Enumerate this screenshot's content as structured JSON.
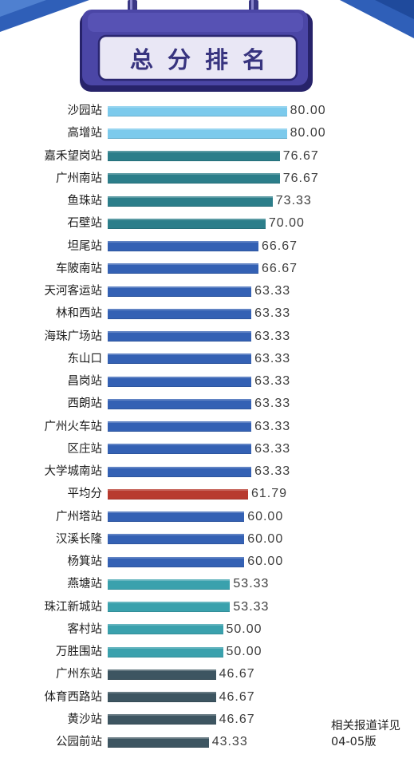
{
  "chart_data": {
    "type": "bar",
    "orientation": "horizontal",
    "title": "总分排名",
    "categories": [
      "沙园站",
      "高增站",
      "嘉禾望岗站",
      "广州南站",
      "鱼珠站",
      "石壁站",
      "坦尾站",
      "车陂南站",
      "天河客运站",
      "林和西站",
      "海珠广场站",
      "东山口",
      "昌岗站",
      "西朗站",
      "广州火车站",
      "区庄站",
      "大学城南站",
      "平均分",
      "广州塔站",
      "汉溪长隆",
      "杨箕站",
      "燕塘站",
      "珠江新城站",
      "客村站",
      "万胜围站",
      "广州东站",
      "体育西路站",
      "黄沙站",
      "公园前站"
    ],
    "values": [
      80.0,
      80.0,
      76.67,
      76.67,
      73.33,
      70.0,
      66.67,
      66.67,
      63.33,
      63.33,
      63.33,
      63.33,
      63.33,
      63.33,
      63.33,
      63.33,
      63.33,
      61.79,
      60.0,
      60.0,
      60.0,
      53.33,
      53.33,
      50.0,
      50.0,
      46.67,
      46.67,
      46.67,
      43.33
    ],
    "value_labels": [
      "80.00",
      "80.00",
      "76.67",
      "76.67",
      "73.33",
      "70.00",
      "66.67",
      "66.67",
      "63.33",
      "63.33",
      "63.33",
      "63.33",
      "63.33",
      "63.33",
      "63.33",
      "63.33",
      "63.33",
      "61.79",
      "60.00",
      "60.00",
      "60.00",
      "53.33",
      "53.33",
      "50.00",
      "50.00",
      "46.67",
      "46.67",
      "46.67",
      "43.33"
    ],
    "bar_colors": [
      "#7ccaec",
      "#7ccaec",
      "#2c7e8a",
      "#2c7e8a",
      "#2c7e8a",
      "#2c7e8a",
      "#3461b4",
      "#3461b4",
      "#3461b4",
      "#3461b4",
      "#3461b4",
      "#3461b4",
      "#3461b4",
      "#3461b4",
      "#3461b4",
      "#3461b4",
      "#3461b4",
      "#b83a2f",
      "#3461b4",
      "#3461b4",
      "#3461b4",
      "#3aa1ad",
      "#3aa1ad",
      "#3aa1ad",
      "#3aa1ad",
      "#3d5561",
      "#3d5561",
      "#3d5561",
      "#3d5561"
    ]
  },
  "footnote": {
    "line1": "相关报道详见",
    "line2": "04-05版"
  }
}
